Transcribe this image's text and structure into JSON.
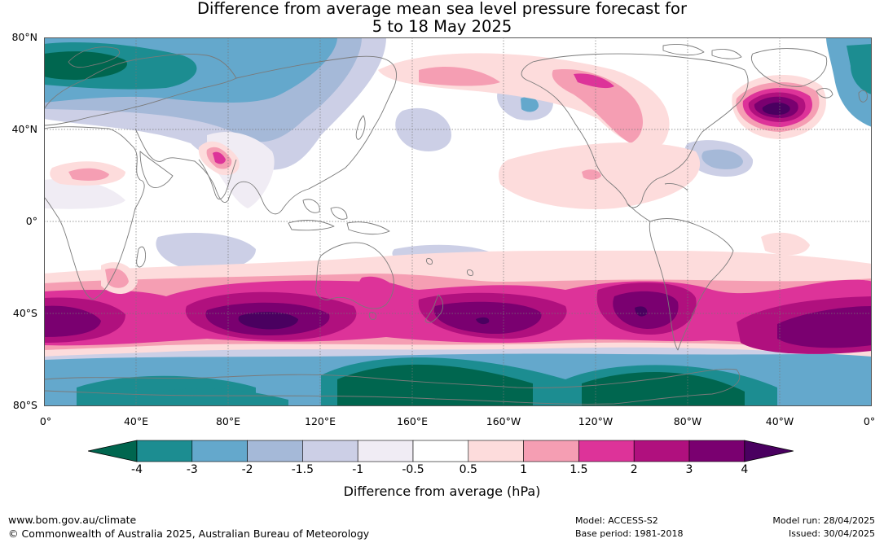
{
  "title_line1": "Difference from average mean sea level pressure forecast for",
  "title_line2": "5 to 18 May 2025",
  "lat_labels": [
    "80°N",
    "40°N",
    "0°",
    "40°S",
    "80°S"
  ],
  "lon_labels": [
    "0°",
    "40°E",
    "80°E",
    "120°E",
    "160°E",
    "160°W",
    "120°W",
    "80°W",
    "40°W",
    "0°"
  ],
  "colorbar": {
    "title": "Difference from average (hPa)",
    "tick_labels": [
      "-4",
      "-3",
      "-2",
      "-1.5",
      "-1",
      "-0.5",
      "0.5",
      "1",
      "1.5",
      "2",
      "3",
      "4"
    ],
    "colors": [
      "#00664f",
      "#1c8d91",
      "#64a8cc",
      "#a5b9d8",
      "#cccfe6",
      "#f0ecf4",
      "#ffffff",
      "#fddcdc",
      "#f59eb3",
      "#dd3399",
      "#b0107e",
      "#7a0070",
      "#4a0060"
    ]
  },
  "footer": {
    "url": "www.bom.gov.au/climate",
    "copyright": "© Commonwealth of Australia 2025, Australian Bureau of Meteorology",
    "model": "Model: ACCESS-S2",
    "base_period": "Base period: 1981-2018",
    "model_run": "Model run: 28/04/2025",
    "issued": "Issued: 30/04/2025"
  }
}
